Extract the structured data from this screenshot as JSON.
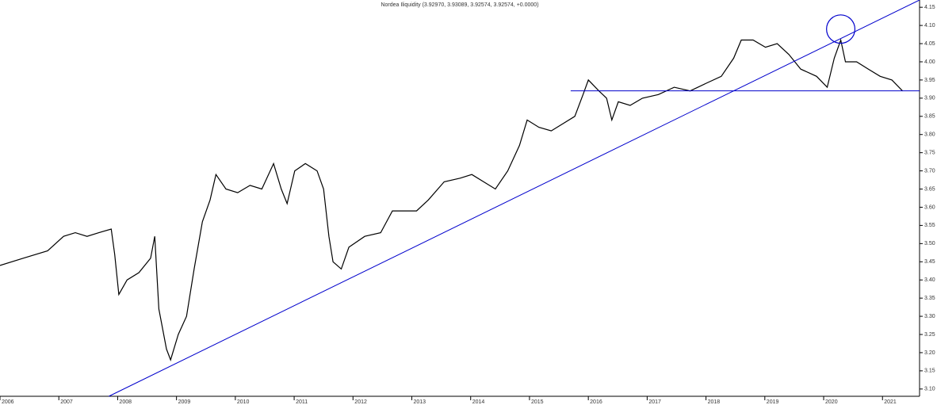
{
  "chart_data": {
    "type": "line",
    "title": "Nordea Iliquidity (3.92970, 3.93089, 3.92574, 3.92574, +0.0000)",
    "color": "#000000",
    "x": [
      2006.0,
      2006.4,
      2006.81,
      2007.08,
      2007.28,
      2007.48,
      2007.68,
      2007.89,
      2007.95,
      2008.02,
      2008.16,
      2008.36,
      2008.56,
      2008.63,
      2008.7,
      2008.83,
      2008.9,
      2009.03,
      2009.17,
      2009.3,
      2009.44,
      2009.57,
      2009.67,
      2009.84,
      2010.04,
      2010.25,
      2010.45,
      2010.65,
      2010.78,
      2010.88,
      2011.01,
      2011.19,
      2011.39,
      2011.5,
      2011.59,
      2011.66,
      2011.8,
      2011.93,
      2012.2,
      2012.47,
      2012.67,
      2012.87,
      2013.08,
      2013.28,
      2013.55,
      2013.82,
      2014.02,
      2014.22,
      2014.42,
      2014.63,
      2014.83,
      2014.96,
      2015.16,
      2015.37,
      2015.57,
      2015.77,
      2015.91,
      2016.0,
      2016.18,
      2016.31,
      2016.4,
      2016.51,
      2016.71,
      2016.92,
      2017.19,
      2017.46,
      2017.73,
      2017.99,
      2018.26,
      2018.47,
      2018.6,
      2018.8,
      2019.01,
      2019.21,
      2019.41,
      2019.61,
      2019.88,
      2020.06,
      2020.18,
      2020.29,
      2020.37,
      2020.56,
      2020.76,
      2020.96,
      2021.16,
      2021.34
    ],
    "values": [
      3.44,
      3.46,
      3.48,
      3.52,
      3.53,
      3.52,
      3.53,
      3.54,
      3.47,
      3.36,
      3.4,
      3.42,
      3.46,
      3.52,
      3.32,
      3.21,
      3.18,
      3.25,
      3.3,
      3.43,
      3.56,
      3.62,
      3.69,
      3.65,
      3.64,
      3.66,
      3.65,
      3.72,
      3.65,
      3.61,
      3.7,
      3.72,
      3.7,
      3.65,
      3.52,
      3.45,
      3.43,
      3.49,
      3.52,
      3.53,
      3.59,
      3.59,
      3.59,
      3.62,
      3.67,
      3.68,
      3.69,
      3.67,
      3.65,
      3.7,
      3.77,
      3.84,
      3.82,
      3.81,
      3.83,
      3.85,
      3.91,
      3.95,
      3.92,
      3.9,
      3.84,
      3.89,
      3.88,
      3.9,
      3.91,
      3.93,
      3.92,
      3.94,
      3.96,
      4.01,
      4.06,
      4.06,
      4.04,
      4.05,
      4.02,
      3.98,
      3.96,
      3.93,
      4.01,
      4.06,
      4.0,
      4.0,
      3.98,
      3.96,
      3.95,
      3.92
    ],
    "xlim": [
      2006,
      2021.63
    ],
    "xticks": [
      2006,
      2007,
      2008,
      2009,
      2010,
      2011,
      2012,
      2013,
      2014,
      2015,
      2016,
      2017,
      2018,
      2019,
      2020,
      2021
    ],
    "ylim": [
      3.08,
      4.17
    ],
    "yticks": [
      {
        "value": 3.1,
        "label": "3.10"
      },
      {
        "value": 3.15,
        "label": "3.15"
      },
      {
        "value": 3.2,
        "label": "3.20"
      },
      {
        "value": 3.25,
        "label": "3.25"
      },
      {
        "value": 3.3,
        "label": "3.30"
      },
      {
        "value": 3.35,
        "label": "3.35"
      },
      {
        "value": 3.4,
        "label": "3.40"
      },
      {
        "value": 3.45,
        "label": "3.45"
      },
      {
        "value": 3.5,
        "label": "3.50"
      },
      {
        "value": 3.55,
        "label": "3.55"
      },
      {
        "value": 3.6,
        "label": "3.60"
      },
      {
        "value": 3.65,
        "label": "3.65"
      },
      {
        "value": 3.7,
        "label": "3.70"
      },
      {
        "value": 3.75,
        "label": "3.75"
      },
      {
        "value": 3.8,
        "label": "3.80"
      },
      {
        "value": 3.85,
        "label": "3.85"
      },
      {
        "value": 3.9,
        "label": "3.90"
      },
      {
        "value": 3.95,
        "label": "3.95"
      },
      {
        "value": 4.0,
        "label": "4.00"
      },
      {
        "value": 4.05,
        "label": "4.05"
      },
      {
        "value": 4.1,
        "label": "4.10"
      },
      {
        "value": 4.15,
        "label": "4.15"
      }
    ],
    "trendlines": [
      {
        "x": [
          2007.85,
          2021.63
        ],
        "y": [
          3.08,
          4.17
        ],
        "color": "#0000cc"
      },
      {
        "x": [
          2015.7,
          2021.63
        ],
        "y": [
          3.92,
          3.92
        ],
        "color": "#0000cc"
      }
    ],
    "circle": {
      "x": 2020.29,
      "y": 4.09,
      "r": 0.039,
      "color": "#0000cc"
    }
  }
}
